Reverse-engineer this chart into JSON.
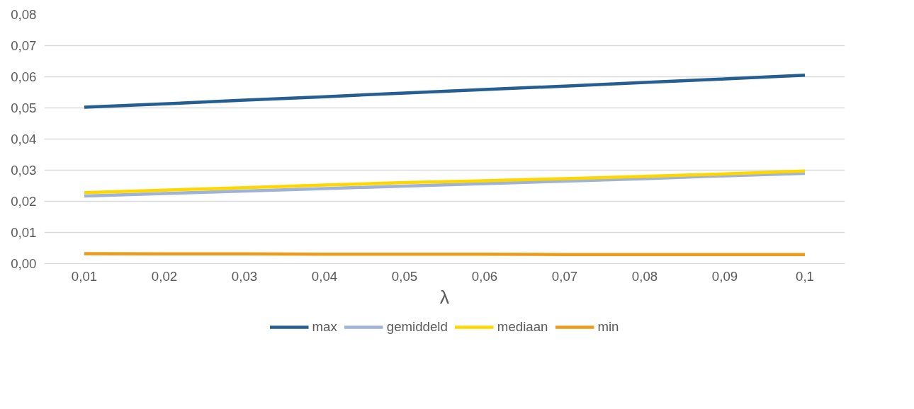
{
  "chart_data": {
    "type": "line",
    "xlabel": "λ",
    "categories": [
      "0,01",
      "0,02",
      "0,03",
      "0,04",
      "0,05",
      "0,06",
      "0,07",
      "0,08",
      "0,09",
      "0,1"
    ],
    "series": [
      {
        "name": "max",
        "color": "#255e91",
        "values": [
          0.0502,
          0.0513,
          0.0525,
          0.0536,
          0.0548,
          0.0559,
          0.057,
          0.0582,
          0.0593,
          0.0605
        ]
      },
      {
        "name": "gemiddeld",
        "color": "#9db3d9",
        "values": [
          0.0217,
          0.0225,
          0.0233,
          0.0241,
          0.0249,
          0.0257,
          0.0265,
          0.0273,
          0.0282,
          0.029
        ]
      },
      {
        "name": "mediaan",
        "color": "#ffd700",
        "values": [
          0.0228,
          0.0236,
          0.0244,
          0.0252,
          0.026,
          0.0266,
          0.0273,
          0.028,
          0.0288,
          0.0297
        ]
      },
      {
        "name": "min",
        "color": "#ed9b1c",
        "values": [
          0.0032,
          0.0031,
          0.0031,
          0.003,
          0.003,
          0.003,
          0.0029,
          0.0029,
          0.0029,
          0.0029
        ]
      }
    ],
    "ylim": [
      0,
      0.08
    ],
    "yticks": [
      {
        "value": 0,
        "label": "0,00"
      },
      {
        "value": 0.01,
        "label": "0,01"
      },
      {
        "value": 0.02,
        "label": "0,02"
      },
      {
        "value": 0.03,
        "label": "0,03"
      },
      {
        "value": 0.04,
        "label": "0,04"
      },
      {
        "value": 0.05,
        "label": "0,05"
      },
      {
        "value": 0.06,
        "label": "0,06"
      },
      {
        "value": 0.07,
        "label": "0,07"
      },
      {
        "value": 0.08,
        "label": "0,08"
      }
    ],
    "grid": "y",
    "legend": "bottom",
    "marker": "none",
    "line_style": "solid"
  }
}
